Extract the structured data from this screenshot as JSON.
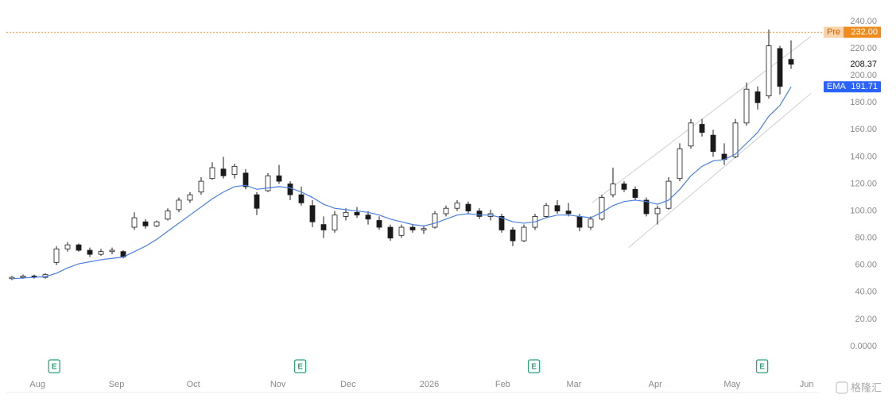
{
  "chart_data": {
    "type": "candlestick",
    "xlim": [
      0,
      73
    ],
    "ylim": [
      0,
      240
    ],
    "yticks": [
      {
        "value": 240,
        "label": "240.00"
      },
      {
        "value": 220,
        "label": "220.00"
      },
      {
        "value": 200,
        "label": "200.00"
      },
      {
        "value": 180,
        "label": "180.00"
      },
      {
        "value": 160,
        "label": "160.00"
      },
      {
        "value": 140,
        "label": "140.00"
      },
      {
        "value": 120,
        "label": "120.00"
      },
      {
        "value": 100,
        "label": "100.00"
      },
      {
        "value": 80,
        "label": "80.00"
      },
      {
        "value": 60,
        "label": "60.00"
      },
      {
        "value": 40,
        "label": "40.00"
      },
      {
        "value": 20,
        "label": "20.00"
      },
      {
        "value": 0,
        "label": "0.0000"
      }
    ],
    "xticks": [
      {
        "value": 2.8,
        "label": "Aug"
      },
      {
        "value": 9.9,
        "label": "Sep"
      },
      {
        "value": 16.8,
        "label": "Oct"
      },
      {
        "value": 24.4,
        "label": "Nov"
      },
      {
        "value": 30.7,
        "label": "Dec"
      },
      {
        "value": 38.0,
        "label": "2026"
      },
      {
        "value": 44.6,
        "label": "Feb"
      },
      {
        "value": 51.0,
        "label": "Mar"
      },
      {
        "value": 58.3,
        "label": "Apr"
      },
      {
        "value": 65.2,
        "label": "May"
      },
      {
        "value": 71.9,
        "label": "Jun"
      }
    ],
    "x": [
      0.5,
      1.5,
      2.5,
      3.5,
      4.5,
      5.5,
      6.5,
      7.5,
      8.5,
      9.5,
      10.5,
      11.5,
      12.5,
      13.5,
      14.5,
      15.5,
      16.5,
      17.5,
      18.5,
      19.5,
      20.5,
      21.5,
      22.5,
      23.5,
      24.5,
      25.5,
      26.5,
      27.5,
      28.5,
      29.5,
      30.5,
      31.5,
      32.5,
      33.5,
      34.5,
      35.5,
      36.5,
      37.5,
      38.5,
      39.5,
      40.5,
      41.5,
      42.5,
      43.5,
      44.5,
      45.5,
      46.5,
      47.5,
      48.5,
      49.5,
      50.5,
      51.5,
      52.5,
      53.5,
      54.5,
      55.5,
      56.5,
      57.5,
      58.5,
      59.5,
      60.5,
      61.5,
      62.5,
      63.5,
      64.5,
      65.5,
      66.5,
      67.5,
      68.5,
      69.5,
      70.5
    ],
    "open": [
      50,
      51,
      52,
      51,
      62,
      72,
      75,
      71,
      68,
      70,
      70,
      88,
      92,
      89,
      94,
      101,
      108,
      114,
      124,
      131,
      127,
      128,
      112,
      115,
      126,
      120,
      112,
      104,
      90,
      86,
      96,
      99,
      97,
      93,
      88,
      82,
      88,
      86,
      88,
      98,
      102,
      105,
      100,
      96,
      96,
      86,
      78,
      88,
      96,
      104,
      100,
      96,
      88,
      94,
      112,
      120,
      116,
      108,
      98,
      102,
      124,
      148,
      164,
      156,
      142,
      140,
      165,
      188,
      185,
      220,
      212
    ],
    "high": [
      52,
      53,
      53,
      54,
      74,
      77,
      76,
      73,
      72,
      73,
      71,
      99,
      94,
      93,
      102,
      110,
      114,
      125,
      136,
      140,
      135,
      131,
      114,
      128,
      134,
      122,
      118,
      108,
      96,
      100,
      102,
      103,
      100,
      96,
      90,
      90,
      90,
      89,
      100,
      104,
      108,
      107,
      102,
      101,
      98,
      88,
      90,
      98,
      106,
      108,
      106,
      98,
      96,
      112,
      132,
      122,
      118,
      110,
      104,
      125,
      150,
      168,
      168,
      160,
      150,
      168,
      195,
      192,
      234,
      222,
      226
    ],
    "low": [
      49,
      50,
      50,
      50,
      60,
      70,
      70,
      66,
      67,
      68,
      65,
      86,
      87,
      88,
      93,
      99,
      106,
      112,
      123,
      124,
      124,
      116,
      97,
      114,
      120,
      108,
      104,
      88,
      80,
      84,
      93,
      95,
      90,
      86,
      78,
      80,
      84,
      83,
      87,
      96,
      100,
      98,
      94,
      93,
      84,
      74,
      77,
      86,
      95,
      98,
      96,
      85,
      86,
      93,
      110,
      114,
      108,
      96,
      90,
      101,
      122,
      146,
      155,
      140,
      134,
      139,
      163,
      175,
      183,
      186,
      205
    ],
    "close": [
      51,
      52,
      51,
      53,
      72,
      75,
      71,
      68,
      70,
      71,
      66,
      95,
      89,
      92,
      100,
      108,
      112,
      122,
      132,
      126,
      133,
      118,
      102,
      126,
      122,
      112,
      106,
      92,
      86,
      97,
      99,
      97,
      94,
      88,
      80,
      88,
      86,
      87,
      98,
      102,
      106,
      100,
      96,
      98,
      86,
      78,
      88,
      96,
      104,
      100,
      98,
      88,
      94,
      110,
      120,
      116,
      110,
      98,
      102,
      122,
      146,
      165,
      158,
      144,
      138,
      165,
      190,
      180,
      222,
      192,
      208.37
    ],
    "up_color": "#ffffff",
    "down_color": "#1a1a1a",
    "series": [
      {
        "name": "EMA",
        "color": "#4a7fe0",
        "values": [
          50,
          50.5,
          51,
          51.5,
          54,
          58,
          61,
          62.5,
          64,
          65,
          66,
          70,
          74,
          79,
          85,
          91,
          97,
          103,
          109,
          114,
          118,
          119,
          116,
          117,
          118,
          117,
          114,
          110,
          105,
          102,
          101,
          100,
          99,
          97,
          94,
          92,
          90,
          89,
          91,
          94,
          97,
          98,
          97,
          97,
          95,
          92,
          91,
          92,
          95,
          97,
          97,
          96,
          95,
          99,
          104,
          107,
          108,
          107,
          105,
          108,
          116,
          126,
          133,
          137,
          138,
          142,
          150,
          158,
          170,
          178,
          191.71
        ]
      }
    ],
    "premarket": {
      "label": "Pre",
      "value": 232,
      "value_label": "232.00",
      "color": "#f08c1e"
    },
    "last_price": 208.37,
    "trendlines": [
      {
        "x": [
          52.6,
          72.3
        ],
        "y": [
          106,
          229
        ]
      },
      {
        "x": [
          55.9,
          72.3
        ],
        "y": [
          73,
          187
        ]
      }
    ],
    "earnings": {
      "label": "E",
      "x": [
        4.3,
        26.4,
        47.4,
        67.9
      ]
    },
    "watermark": "格隆汇"
  }
}
